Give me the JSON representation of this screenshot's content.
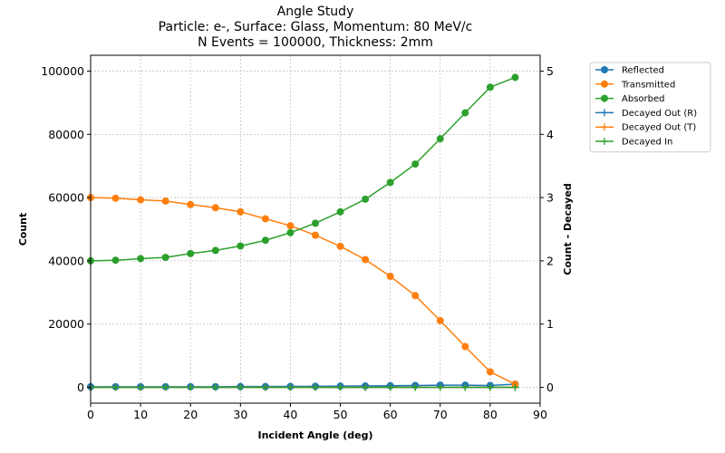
{
  "chart_data": {
    "type": "line",
    "title_lines": [
      "Angle Study",
      "Particle: e-, Surface: Glass, Momentum: 80 MeV/c",
      "N Events = 100000, Thickness: 2mm"
    ],
    "xlabel": "Incident Angle (deg)",
    "ylabel": "Count",
    "ylabel_right": "Count - Decayed",
    "ylabel_right_color": "#ff0000",
    "xlim": [
      0,
      90
    ],
    "ylim": [
      -5000,
      105000
    ],
    "ylim_right": [
      -0.25,
      5.25
    ],
    "x_ticks": [
      0,
      10,
      20,
      30,
      40,
      50,
      60,
      70,
      80,
      90
    ],
    "y_ticks": [
      0,
      20000,
      40000,
      60000,
      80000,
      100000
    ],
    "y_ticks_right": [
      0,
      1,
      2,
      3,
      4,
      5
    ],
    "grid": true,
    "legend_position": "outside-top-right",
    "x": [
      0,
      5,
      10,
      15,
      20,
      25,
      30,
      35,
      40,
      45,
      50,
      55,
      60,
      65,
      70,
      75,
      80,
      85
    ],
    "series": [
      {
        "name": "Reflected",
        "axis": "left",
        "marker": "circle",
        "color": "#1f77b4",
        "values": [
          200,
          200,
          200,
          200,
          200,
          200,
          250,
          250,
          300,
          350,
          400,
          450,
          500,
          600,
          700,
          700,
          600,
          1000
        ]
      },
      {
        "name": "Transmitted",
        "axis": "left",
        "marker": "circle",
        "color": "#ff7f0e",
        "values": [
          60000,
          59800,
          59300,
          58900,
          57800,
          56800,
          55500,
          53300,
          51100,
          48100,
          44600,
          40400,
          35100,
          29000,
          21100,
          12900,
          4900,
          1000
        ]
      },
      {
        "name": "Absorbed",
        "axis": "left",
        "marker": "circle",
        "color": "#2ca02c",
        "values": [
          40000,
          40200,
          40700,
          41100,
          42300,
          43300,
          44700,
          46500,
          48900,
          51900,
          55500,
          59500,
          64800,
          70600,
          78600,
          86800,
          94900,
          98000
        ]
      },
      {
        "name": "Decayed Out (R)",
        "axis": "right",
        "marker": "plus",
        "color": "#1f77b4",
        "values": [
          0,
          0,
          0,
          0,
          0,
          0,
          0,
          0,
          0,
          0,
          0,
          0,
          0,
          0,
          0,
          0,
          0,
          0
        ]
      },
      {
        "name": "Decayed Out (T)",
        "axis": "right",
        "marker": "plus",
        "color": "#ff7f0e",
        "values": [
          0,
          0,
          0,
          0,
          0,
          0,
          0,
          0,
          0,
          0,
          0,
          0,
          0,
          0,
          0,
          0,
          0,
          0
        ]
      },
      {
        "name": "Decayed In",
        "axis": "right",
        "marker": "plus",
        "color": "#2ca02c",
        "values": [
          0,
          0,
          0,
          0,
          0,
          0,
          0,
          0,
          0,
          0,
          0,
          0,
          0,
          0,
          0,
          0,
          0,
          0
        ]
      }
    ]
  }
}
